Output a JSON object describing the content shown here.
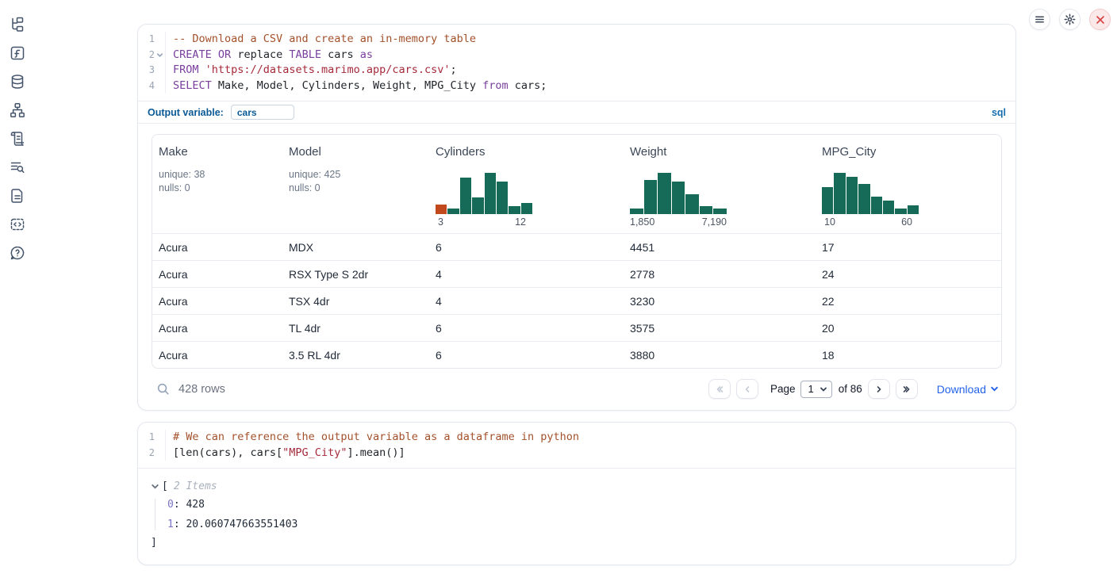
{
  "sidebar": {
    "icons": [
      "file-tree-icon",
      "function-square-icon",
      "database-icon",
      "dependency-graph-icon",
      "scroll-icon",
      "list-search-icon",
      "document-icon",
      "code-snippets-icon",
      "help-chat-icon"
    ]
  },
  "window_controls": {
    "buttons": [
      "menu-icon",
      "gear-icon",
      "close-icon"
    ]
  },
  "cell1": {
    "language_badge": "sql",
    "output_variable_label": "Output variable:",
    "output_variable_value": "cars",
    "lines": [
      {
        "num": "1",
        "tokens": [
          {
            "t": "-- Download a CSV and create an in-memory table",
            "c": "comment"
          }
        ]
      },
      {
        "num": "2",
        "fold": true,
        "tokens": [
          {
            "t": "CREATE",
            "c": "kw"
          },
          {
            "t": " ",
            "c": "plain"
          },
          {
            "t": "OR",
            "c": "kw"
          },
          {
            "t": " replace ",
            "c": "plain"
          },
          {
            "t": "TABLE",
            "c": "kw"
          },
          {
            "t": " cars ",
            "c": "plain"
          },
          {
            "t": "as",
            "c": "kw"
          }
        ]
      },
      {
        "num": "3",
        "tokens": [
          {
            "t": "FROM",
            "c": "kw"
          },
          {
            "t": " ",
            "c": "plain"
          },
          {
            "t": "'https://datasets.marimo.app/cars.csv'",
            "c": "str"
          },
          {
            "t": ";",
            "c": "plain"
          }
        ]
      },
      {
        "num": "4",
        "tokens": [
          {
            "t": "SELECT",
            "c": "kw"
          },
          {
            "t": " Make, Model, Cylinders, Weight, MPG_City ",
            "c": "plain"
          },
          {
            "t": "from",
            "c": "kw"
          },
          {
            "t": " cars;",
            "c": "plain"
          }
        ]
      }
    ]
  },
  "table": {
    "columns": [
      {
        "name": "Make",
        "stats": [
          "unique: 38",
          "nulls: 0"
        ]
      },
      {
        "name": "Model",
        "stats": [
          "unique: 425",
          "nulls: 0"
        ]
      },
      {
        "name": "Cylinders",
        "histogram": 0
      },
      {
        "name": "Weight",
        "histogram": 1
      },
      {
        "name": "MPG_City",
        "histogram": 2
      }
    ],
    "rows": [
      [
        "Acura",
        "MDX",
        "6",
        "4451",
        "17"
      ],
      [
        "Acura",
        "RSX Type S 2dr",
        "4",
        "2778",
        "24"
      ],
      [
        "Acura",
        "TSX 4dr",
        "4",
        "3230",
        "22"
      ],
      [
        "Acura",
        "TL 4dr",
        "6",
        "3575",
        "20"
      ],
      [
        "Acura",
        "3.5 RL 4dr",
        "6",
        "3880",
        "18"
      ]
    ],
    "footer": {
      "row_count": "428 rows",
      "page_label": "Page",
      "page_value": "1",
      "of_label": "of 86",
      "download_label": "Download"
    }
  },
  "chart_data": [
    {
      "type": "bar",
      "title": "Cylinders",
      "note": "column histogram, relative bin frequencies",
      "x_min_label": "3",
      "x_max_label": "12",
      "xlim": [
        3,
        12
      ],
      "values": [
        0.24,
        0.13,
        0.89,
        0.41,
        1.0,
        0.78,
        0.2,
        0.27
      ],
      "bar_colors": [
        "#c2491d",
        "#166a58",
        "#166a58",
        "#166a58",
        "#166a58",
        "#166a58",
        "#166a58",
        "#166a58"
      ]
    },
    {
      "type": "bar",
      "title": "Weight",
      "note": "column histogram, relative bin frequencies",
      "x_min_label": "1,850",
      "x_max_label": "7,190",
      "xlim": [
        1850,
        7190
      ],
      "values": [
        0.14,
        0.82,
        1.0,
        0.78,
        0.49,
        0.19,
        0.14
      ],
      "bar_colors": [
        "#166a58",
        "#166a58",
        "#166a58",
        "#166a58",
        "#166a58",
        "#166a58",
        "#166a58"
      ]
    },
    {
      "type": "bar",
      "title": "MPG_City",
      "note": "column histogram, relative bin frequencies",
      "x_min_label": "10",
      "x_max_label": "60",
      "xlim": [
        10,
        60
      ],
      "values": [
        0.65,
        1.0,
        0.91,
        0.73,
        0.43,
        0.32,
        0.14,
        0.22
      ],
      "bar_colors": [
        "#166a58",
        "#166a58",
        "#166a58",
        "#166a58",
        "#166a58",
        "#166a58",
        "#166a58",
        "#166a58"
      ]
    }
  ],
  "cell2": {
    "lines": [
      {
        "num": "1",
        "tokens": [
          {
            "t": "# We can reference the output variable as a dataframe in python",
            "c": "comment"
          }
        ]
      },
      {
        "num": "2",
        "tokens": [
          {
            "t": "[len(cars), cars[",
            "c": "plain"
          },
          {
            "t": "\"MPG_City\"",
            "c": "str"
          },
          {
            "t": "].mean()]",
            "c": "plain"
          }
        ]
      }
    ],
    "output": {
      "open_bracket": "[",
      "items_label": "2 Items",
      "entries": [
        {
          "key": "0",
          "value": "428"
        },
        {
          "key": "1",
          "value": "20.060747663551403"
        }
      ],
      "close_bracket": "]"
    }
  },
  "colors": {
    "histogram_green": "#166a58",
    "histogram_orange": "#c2491d",
    "keyword": "#7a3e9d",
    "comment": "#a3512b",
    "string": "#a52a3a",
    "accent_blue": "#0b5a96",
    "link_blue": "#2563eb",
    "close_red": "#d64545"
  }
}
